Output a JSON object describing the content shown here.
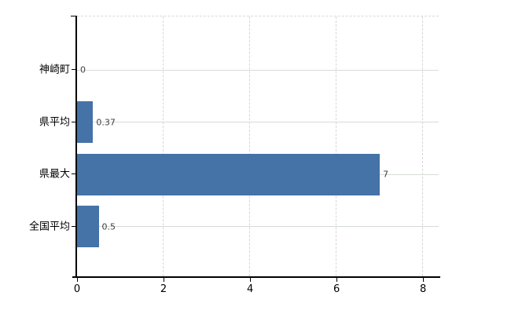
{
  "chart_data": {
    "type": "bar",
    "orientation": "horizontal",
    "title": "",
    "xlabel": "",
    "ylabel": "",
    "categories": [
      "神崎町",
      "県平均",
      "県最大",
      "全国平均"
    ],
    "values": [
      0,
      0.37,
      7,
      0.5
    ],
    "value_labels": [
      "0",
      "0.37",
      "7",
      "0.5"
    ],
    "x_ticks": [
      0,
      2,
      4,
      6,
      8
    ],
    "x_tick_labels": [
      "0",
      "2",
      "4",
      "6",
      "8"
    ],
    "xlim": [
      0,
      8.36
    ],
    "grid": {
      "vertical_style": "dashed",
      "horizontal_style": "solid",
      "top_border_style": "dashed"
    },
    "legend": "none",
    "colors": {
      "bar": "#4572a7",
      "horizontal_grid": "#d5dcd5",
      "vertical_grid": "#d7d7d7",
      "top_border": "#dadada",
      "axis": "#000000",
      "category_label": "#000000",
      "tick_label": "#000000",
      "value_label": "#404040",
      "background": "#ffffff"
    }
  }
}
